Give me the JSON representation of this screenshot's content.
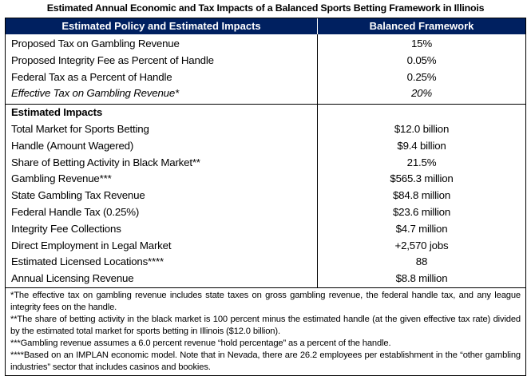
{
  "title": "Estimated Annual Economic and Tax Impacts of a Balanced Sports Betting Framework in Illinois",
  "header": {
    "col1": "Estimated Policy and Estimated Impacts",
    "col2": "Balanced Framework"
  },
  "header_color": "#002060",
  "policy_rows": [
    {
      "label": "Proposed Tax on Gambling Revenue",
      "value": "15%"
    },
    {
      "label": "Proposed Integrity Fee as Percent of Handle",
      "value": "0.05%"
    },
    {
      "label": "Federal Tax as a Percent of Handle",
      "value": "0.25%"
    },
    {
      "label": "Effective Tax on Gambling Revenue*",
      "value": "20%"
    }
  ],
  "impacts_heading": "Estimated Impacts",
  "impact_rows": [
    {
      "label": "Total Market for Sports Betting",
      "value": "$12.0 billion"
    },
    {
      "label": "Handle (Amount Wagered)",
      "value": "$9.4 billion"
    },
    {
      "label": "Share of Betting Activity in Black Market**",
      "value": "21.5%"
    },
    {
      "label": "Gambling Revenue***",
      "value": "$565.3 million"
    },
    {
      "label": "State Gambling Tax Revenue",
      "value": "$84.8 million"
    },
    {
      "label": "Federal Handle Tax (0.25%)",
      "value": "$23.6 million"
    },
    {
      "label": "Integrity Fee Collections",
      "value": "$4.7 million"
    },
    {
      "label": "Direct Employment in Legal Market",
      "value": "+2,570 jobs"
    },
    {
      "label": "Estimated Licensed Locations****",
      "value": "88"
    },
    {
      "label": "Annual Licensing Revenue",
      "value": "$8.8 million"
    }
  ],
  "footnotes": [
    "*The effective tax on gambling revenue includes state taxes on gross gambling revenue, the federal handle tax, and any league integrity fees on the handle.",
    "**The share of betting activity in the black market is 100 percent minus the estimated handle (at the given effective tax rate) divided by the estimated total market for sports betting in Illinois ($12.0 billion).",
    "***Gambling revenue assumes a 6.0 percent revenue “hold percentage” as a percent of the handle.",
    "****Based on an IMPLAN economic model. Note that in Nevada, there are 26.2 employees per establishment in the “other gambling industries” sector that includes casinos and bookies."
  ]
}
